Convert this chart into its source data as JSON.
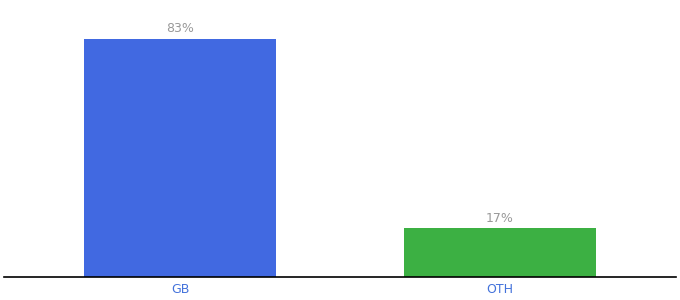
{
  "categories": [
    "GB",
    "OTH"
  ],
  "values": [
    83,
    17
  ],
  "bar_colors": [
    "#4169E1",
    "#3CB043"
  ],
  "labels": [
    "83%",
    "17%"
  ],
  "background_color": "#ffffff",
  "xlabel_color": "#4372db",
  "label_color": "#999999",
  "ylim": [
    0,
    95
  ],
  "figsize": [
    6.8,
    3.0
  ],
  "dpi": 100
}
